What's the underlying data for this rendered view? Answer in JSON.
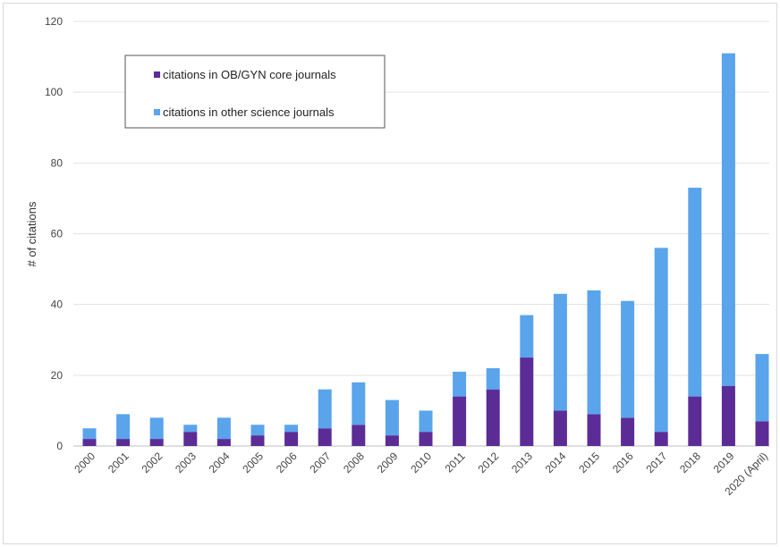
{
  "chart_data": {
    "type": "bar",
    "stacked": true,
    "title": "",
    "xlabel": "",
    "ylabel": "# of citations",
    "ylim": [
      0,
      120
    ],
    "yticks": [
      0,
      20,
      40,
      60,
      80,
      100,
      120
    ],
    "grid": true,
    "legend_position": "top-left",
    "categories": [
      "2000",
      "2001",
      "2002",
      "2003",
      "2004",
      "2005",
      "2006",
      "2007",
      "2008",
      "2009",
      "2010",
      "2011",
      "2012",
      "2013",
      "2014",
      "2015",
      "2016",
      "2017",
      "2018",
      "2019",
      "2020 (April)"
    ],
    "series": [
      {
        "name": "citations in OB/GYN core journals",
        "color": "#5b2c96",
        "values": [
          2,
          2,
          2,
          4,
          2,
          3,
          4,
          5,
          6,
          3,
          4,
          14,
          16,
          25,
          10,
          9,
          8,
          4,
          14,
          17,
          7
        ]
      },
      {
        "name": "citations in other science journals",
        "color": "#5aa4ec",
        "values": [
          3,
          7,
          6,
          2,
          6,
          3,
          2,
          11,
          12,
          10,
          6,
          7,
          6,
          12,
          33,
          35,
          33,
          52,
          59,
          94,
          19
        ]
      }
    ]
  }
}
